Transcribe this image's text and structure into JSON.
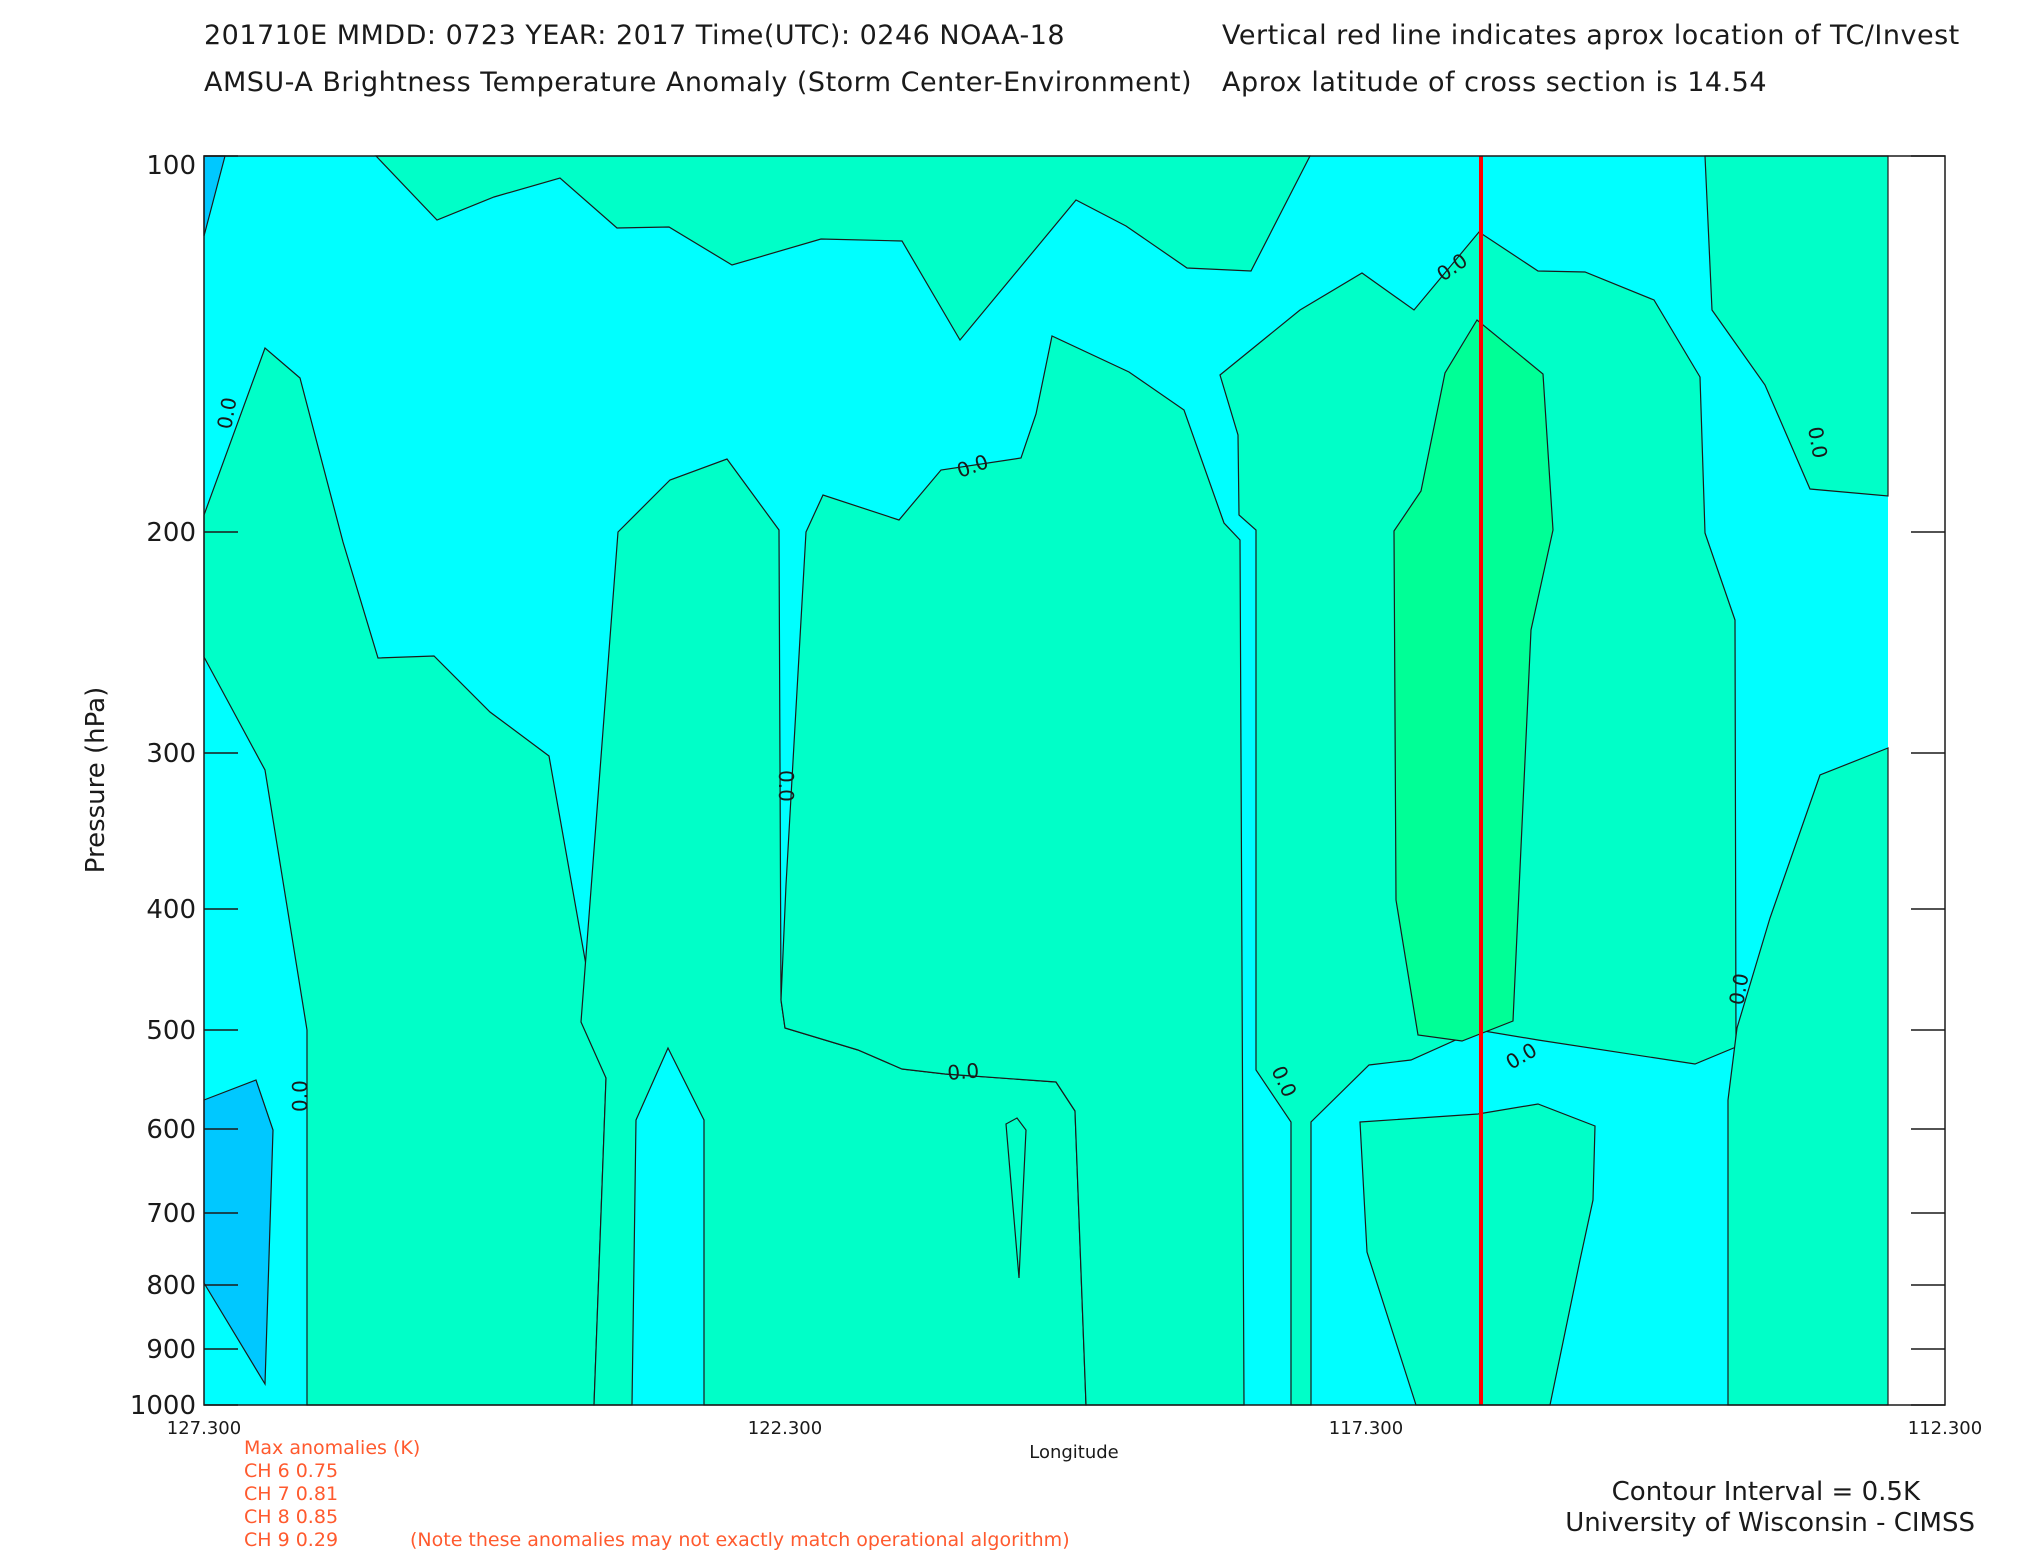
{
  "header": {
    "line1_left": "201710E  MMDD: 0723 YEAR: 2017 Time(UTC): 0246 NOAA-18",
    "line2_left": "AMSU-A Brightness Temperature Anomaly (Storm Center-Environment)",
    "line1_right": "Vertical red line indicates aprox location of TC/Invest",
    "line2_right": "Aprox latitude of cross section is 14.54"
  },
  "anomalies": {
    "title": "Max anomalies (K)",
    "rows": [
      {
        "label": "CH 6  0.75"
      },
      {
        "label": "CH 7  0.81"
      },
      {
        "label": "CH 8  0.85"
      },
      {
        "label": "CH 9  0.29"
      }
    ],
    "note": "(Note these anomalies may not exactly match operational algorithm)"
  },
  "footer": {
    "contour_interval": "Contour Interval = 0.5K",
    "credit": "University of Wisconsin - CIMSS"
  },
  "colors": {
    "background": "#00ffff",
    "positive": "#00ffc8",
    "max_positive": "#00ff96",
    "negative": "#00c8ff",
    "storm_line": "#ff0000"
  },
  "chart_data": {
    "type": "contour",
    "title": "AMSU-A Brightness Temperature Anomaly (Storm Center-Environment)",
    "xlabel": "Longitude",
    "ylabel": "Pressure (hPa)",
    "x_ticks": [
      "127.300",
      "122.300",
      "117.300",
      "112.300"
    ],
    "xlim": [
      127.3,
      112.3
    ],
    "y_ticks": [
      "100",
      "200",
      "300",
      "400",
      "500",
      "600",
      "700",
      "800",
      "900",
      "1000"
    ],
    "ylim": [
      1000,
      100
    ],
    "y_scale": "log",
    "storm_longitude": 116.5,
    "contour_interval_K": 0.5,
    "contour_label": "0.0"
  }
}
